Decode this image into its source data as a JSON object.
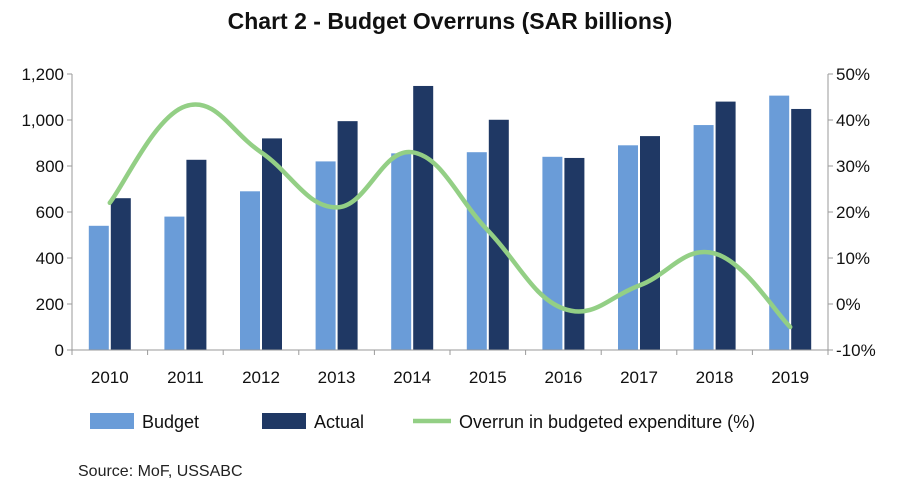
{
  "chart_data": {
    "type": "bar",
    "title": "Chart 2 - Budget Overruns (SAR billions)",
    "categories": [
      "2010",
      "2011",
      "2012",
      "2013",
      "2014",
      "2015",
      "2016",
      "2017",
      "2018",
      "2019"
    ],
    "series": [
      {
        "name": "Budget",
        "type": "bar",
        "axis": "left",
        "color": "#6a9cd8",
        "values": [
          540,
          580,
          690,
          820,
          855,
          860,
          840,
          890,
          978,
          1106
        ]
      },
      {
        "name": "Actual",
        "type": "bar",
        "axis": "left",
        "color": "#1f3864",
        "values": [
          660,
          827,
          920,
          995,
          1148,
          1001,
          835,
          930,
          1080,
          1048
        ]
      },
      {
        "name": "Overrun in budgeted expenditure (%)",
        "type": "line",
        "axis": "right",
        "color": "#93cf85",
        "values": [
          22,
          43,
          33,
          21,
          33,
          16,
          -1,
          4,
          11,
          -5
        ]
      }
    ],
    "y_left": {
      "min": 0,
      "max": 1200,
      "step": 200,
      "tick_labels": [
        "0",
        "200",
        "400",
        "600",
        "800",
        "1,000",
        "1,200"
      ]
    },
    "y_right": {
      "min": -10,
      "max": 50,
      "step": 10,
      "tick_labels": [
        "-10%",
        "0%",
        "10%",
        "20%",
        "30%",
        "40%",
        "50%"
      ]
    },
    "grid": false,
    "legend_position": "bottom"
  },
  "source": "Source: MoF, USSABC"
}
